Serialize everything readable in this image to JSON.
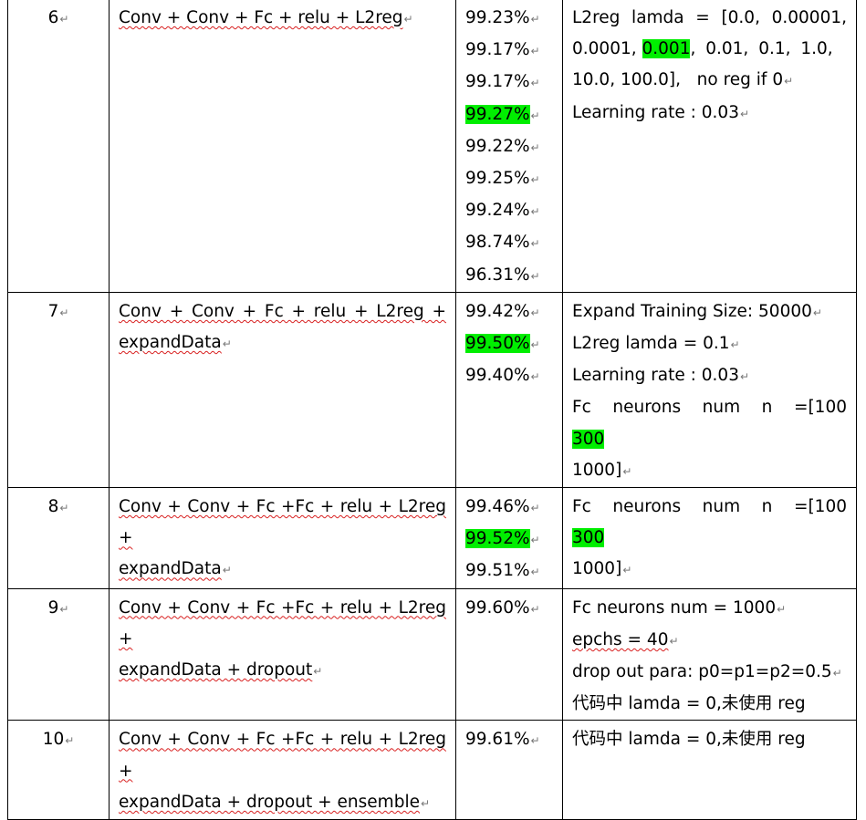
{
  "rows": [
    {
      "no": "6",
      "model_lines": [
        "Conv + Conv + Fc + relu + L2reg"
      ],
      "accuracies": [
        "99.23%",
        "99.17%",
        "99.17%",
        "99.27%",
        "99.22%",
        "99.25%",
        "99.24%",
        "98.74%",
        "96.31%"
      ],
      "highlighted_accuracy": "99.27%",
      "notes": {
        "lamda_prefix": "L2reg lamda = [0.0, 0.00001,",
        "lamda_mid_a": "0.0001,",
        "lamda_highlight": "0.001",
        "lamda_mid_b": ", 0.01, 0.1, 1.0,",
        "lamda_end": "10.0, 100.0],   no reg if 0",
        "learning_rate": "Learning rate : 0.03"
      }
    },
    {
      "no": "7",
      "model_lines": [
        "Conv + Conv + Fc + relu + L2reg +",
        "expandData"
      ],
      "accuracies": [
        "99.42%",
        "99.50%",
        "99.40%"
      ],
      "highlighted_accuracy": "99.50%",
      "notes": {
        "expand": "Expand Training Size: 50000",
        "lamda": "L2reg lamda = 0.1",
        "learning_rate": "Learning rate : 0.03",
        "fc_prefix": "Fc neurons num n =[100",
        "fc_highlight": "300",
        "fc_end": "1000]"
      }
    },
    {
      "no": "8",
      "model_lines": [
        "Conv + Conv + Fc +Fc + relu + L2reg +",
        "expandData"
      ],
      "accuracies": [
        "99.46%",
        "99.52%",
        "99.51%"
      ],
      "highlighted_accuracy": "99.52%",
      "notes": {
        "fc_prefix": "Fc neurons num n =[100",
        "fc_highlight": "300",
        "fc_end": "1000]"
      }
    },
    {
      "no": "9",
      "model_lines": [
        "Conv + Conv + Fc +Fc + relu + L2reg +",
        "expandData + dropout"
      ],
      "accuracies": [
        "99.60%"
      ],
      "notes": {
        "fc": "Fc neurons num = 1000",
        "epochs": "epchs = 40",
        "dropout": "drop out para: p0=p1=p2=0.5",
        "code_note": "代码中 lamda = 0,未使用 reg"
      }
    },
    {
      "no": "10",
      "model_lines": [
        "Conv + Conv + Fc +Fc + relu + L2reg +",
        "expandData + dropout + ensemble"
      ],
      "accuracies": [
        "99.61%"
      ],
      "notes": {
        "code_note": "代码中 lamda = 0,未使用 reg"
      }
    }
  ],
  "colors": {
    "highlight": "#00ee00",
    "spellcheck_underline": "#d82020",
    "paragraph_mark": "#777777"
  },
  "paragraph_mark": "↵"
}
